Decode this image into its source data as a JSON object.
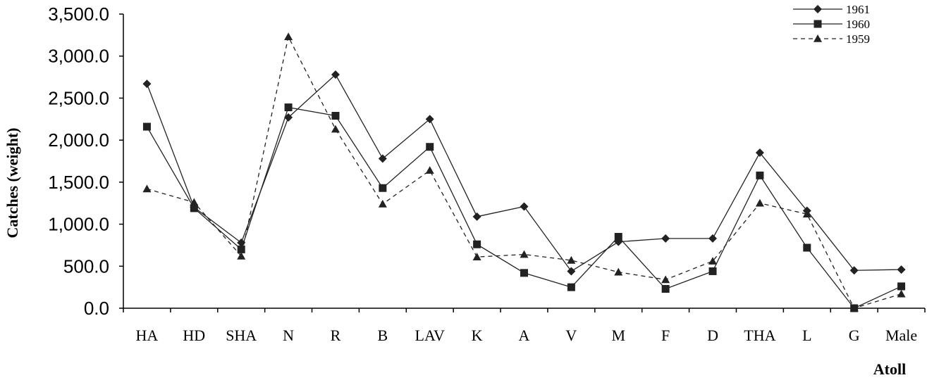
{
  "chart_data": {
    "type": "line",
    "title": "",
    "xlabel": "Atoll",
    "ylabel": "Catches (weight)",
    "ylim": [
      0,
      3500
    ],
    "yticks": [
      "0.0",
      "500.0",
      "1,000.0",
      "1,500.0",
      "2,000.0",
      "2,500.0",
      "3,000.0",
      "3,500.0"
    ],
    "grid": false,
    "legend_position": "top-right",
    "categories": [
      "HA",
      "HD",
      "SHA",
      "N",
      "R",
      "B",
      "LAV",
      "K",
      "A",
      "V",
      "M",
      "F",
      "D",
      "THA",
      "L",
      "G",
      "Male"
    ],
    "series": [
      {
        "name": "1961",
        "marker": "diamond",
        "line": "solid",
        "color": "#222222",
        "values": [
          2670,
          1200,
          780,
          2270,
          2780,
          1780,
          2250,
          1090,
          1210,
          440,
          790,
          830,
          830,
          1850,
          1160,
          450,
          460
        ]
      },
      {
        "name": "1960",
        "marker": "square",
        "line": "solid",
        "color": "#222222",
        "values": [
          2160,
          1190,
          700,
          2390,
          2290,
          1430,
          1920,
          760,
          420,
          250,
          850,
          230,
          440,
          1580,
          720,
          0,
          260
        ]
      },
      {
        "name": "1959",
        "marker": "triangle",
        "line": "dashed",
        "color": "#222222",
        "values": [
          1420,
          1260,
          620,
          3230,
          2130,
          1240,
          1640,
          610,
          640,
          570,
          430,
          340,
          560,
          1250,
          1120,
          0,
          170
        ]
      }
    ]
  }
}
